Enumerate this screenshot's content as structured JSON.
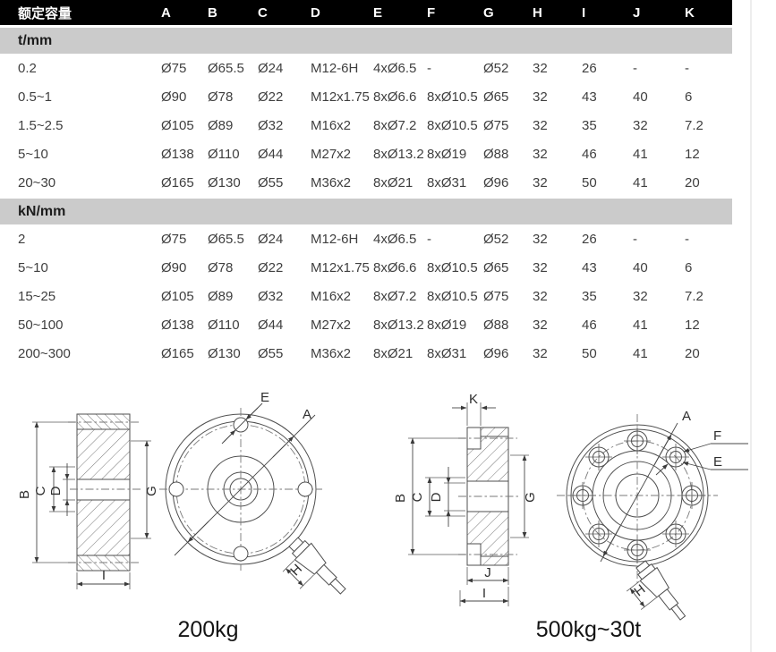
{
  "table": {
    "header": {
      "capacity": "额定容量",
      "cols": [
        "A",
        "B",
        "C",
        "D",
        "E",
        "F",
        "G",
        "H",
        "I",
        "J",
        "K"
      ]
    },
    "sections": [
      {
        "unit": "t/mm",
        "rows": [
          {
            "label": "0.2",
            "cells": [
              "Ø75",
              "Ø65.5",
              "Ø24",
              "M12-6H",
              "4xØ6.5",
              "-",
              "Ø52",
              "32",
              "26",
              "-",
              "-"
            ]
          },
          {
            "label": "0.5~1",
            "cells": [
              "Ø90",
              "Ø78",
              "Ø22",
              "M12x1.75",
              "8xØ6.6",
              "8xØ10.5",
              "Ø65",
              "32",
              "43",
              "40",
              "6"
            ]
          },
          {
            "label": "1.5~2.5",
            "cells": [
              "Ø105",
              "Ø89",
              "Ø32",
              "M16x2",
              "8xØ7.2",
              "8xØ10.5",
              "Ø75",
              "32",
              "35",
              "32",
              "7.2"
            ]
          },
          {
            "label": "5~10",
            "cells": [
              "Ø138",
              "Ø110",
              "Ø44",
              "M27x2",
              "8xØ13.2",
              "8xØ19",
              "Ø88",
              "32",
              "46",
              "41",
              "12"
            ]
          },
          {
            "label": "20~30",
            "cells": [
              "Ø165",
              "Ø130",
              "Ø55",
              "M36x2",
              "8xØ21",
              "8xØ31",
              "Ø96",
              "32",
              "50",
              "41",
              "20"
            ]
          }
        ]
      },
      {
        "unit": "kN/mm",
        "rows": [
          {
            "label": "2",
            "cells": [
              "Ø75",
              "Ø65.5",
              "Ø24",
              "M12-6H",
              "4xØ6.5",
              "-",
              "Ø52",
              "32",
              "26",
              "-",
              "-"
            ]
          },
          {
            "label": "5~10",
            "cells": [
              "Ø90",
              "Ø78",
              "Ø22",
              "M12x1.75",
              "8xØ6.6",
              "8xØ10.5",
              "Ø65",
              "32",
              "43",
              "40",
              "6"
            ]
          },
          {
            "label": "15~25",
            "cells": [
              "Ø105",
              "Ø89",
              "Ø32",
              "M16x2",
              "8xØ7.2",
              "8xØ10.5",
              "Ø75",
              "32",
              "35",
              "32",
              "7.2"
            ]
          },
          {
            "label": "50~100",
            "cells": [
              "Ø138",
              "Ø110",
              "Ø44",
              "M27x2",
              "8xØ13.2",
              "8xØ19",
              "Ø88",
              "32",
              "46",
              "41",
              "12"
            ]
          },
          {
            "label": "200~300",
            "cells": [
              "Ø165",
              "Ø130",
              "Ø55",
              "M36x2",
              "8xØ21",
              "8xØ31",
              "Ø96",
              "32",
              "50",
              "41",
              "20"
            ]
          }
        ]
      }
    ]
  },
  "drawings": {
    "left": {
      "caption": "200kg",
      "labels": {
        "A": "A",
        "B": "B",
        "C": "C",
        "D": "D",
        "E": "E",
        "G": "G",
        "H": "H",
        "I": "I"
      }
    },
    "right": {
      "caption": "500kg~30t",
      "labels": {
        "A": "A",
        "B": "B",
        "C": "C",
        "D": "D",
        "E": "E",
        "F": "F",
        "G": "G",
        "H": "H",
        "I": "I",
        "J": "J",
        "K": "K"
      }
    }
  },
  "colors": {
    "header_bg": "#000000",
    "header_text": "#ffffff",
    "section_bg": "#cbcbcb",
    "body_text": "#3f3f3f"
  }
}
